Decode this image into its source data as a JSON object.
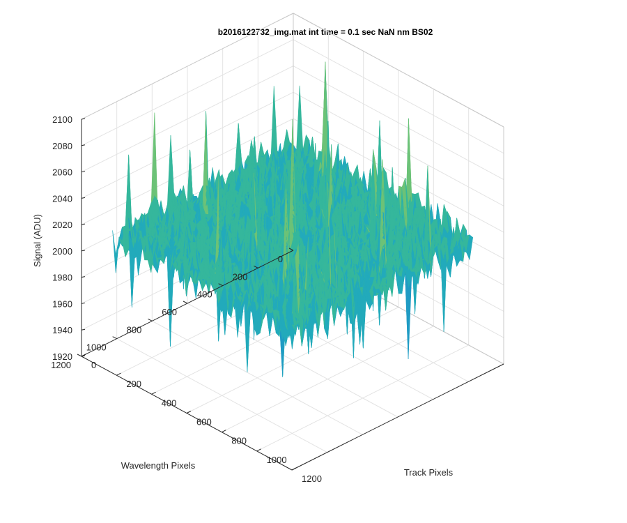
{
  "chart_data": {
    "type": "surface",
    "title": "b2016122732_img.mat int time = 0.1 sec  NaN nm BS02",
    "xlabel": "Track Pixels",
    "ylabel": "Wavelength Pixels",
    "zlabel": "Signal (ADU)",
    "xlim": [
      0,
      1200
    ],
    "ylim": [
      0,
      1200
    ],
    "zlim": [
      1920,
      2100
    ],
    "xticks": [
      "0",
      "200",
      "400",
      "600",
      "800",
      "1000",
      "1200"
    ],
    "yticks": [
      "0",
      "200",
      "400",
      "600",
      "800",
      "1000",
      "1200"
    ],
    "zticks": [
      "1920",
      "1940",
      "1960",
      "1980",
      "2000",
      "2020",
      "2040",
      "2060",
      "2080",
      "2100"
    ],
    "data_extent": {
      "x": [
        0,
        1024
      ],
      "y": [
        0,
        1024
      ]
    },
    "baseline_signal": 2000,
    "noise_range": [
      1920,
      2100
    ],
    "grid": true,
    "colormap": [
      "#1f9bc4",
      "#22aabb",
      "#35b79c",
      "#6cc277",
      "#a6c954",
      "#d8cc3c"
    ]
  }
}
